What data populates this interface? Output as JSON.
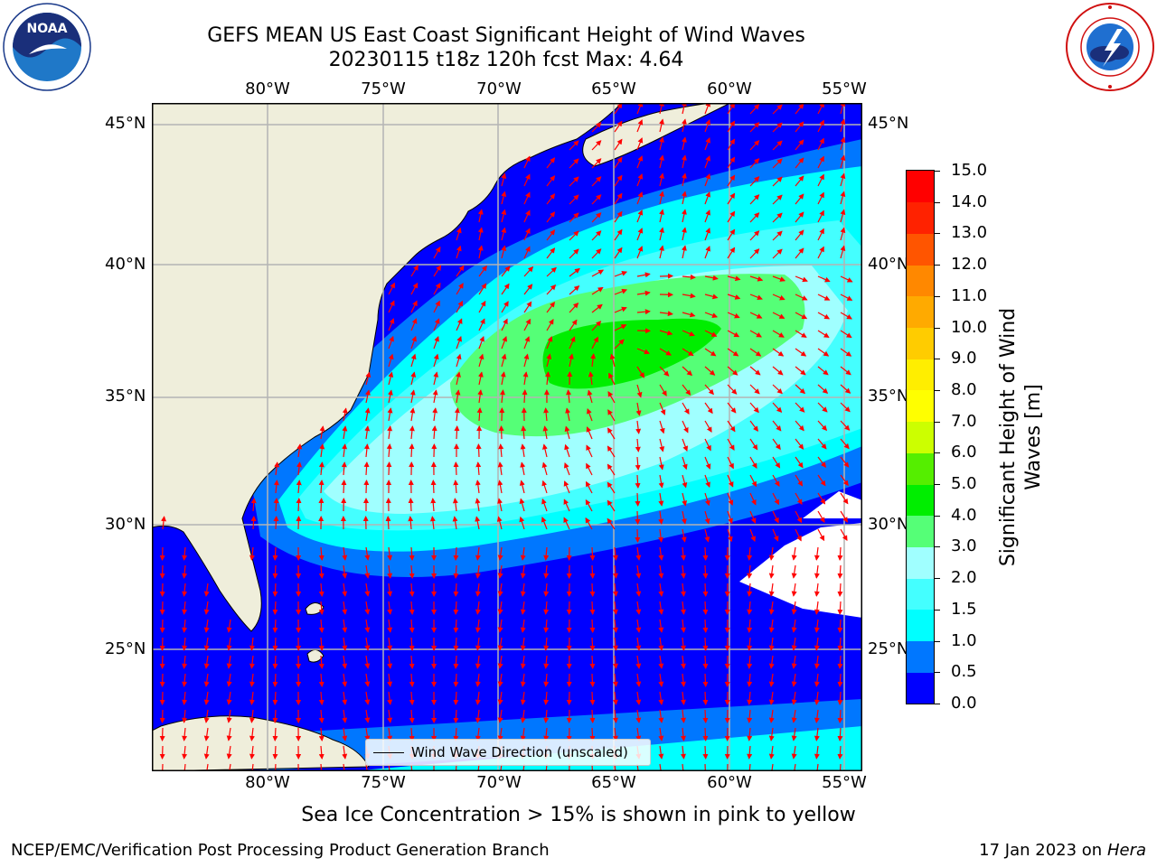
{
  "title": {
    "line1": "GEFS MEAN US East Coast Significant Height of Wind Waves",
    "line2": "20230115 t18z 120h fcst   Max: 4.64"
  },
  "lon_labels": [
    "80°W",
    "75°W",
    "70°W",
    "65°W",
    "60°W",
    "55°W"
  ],
  "lat_labels": [
    "45°N",
    "40°N",
    "35°N",
    "30°N",
    "25°N"
  ],
  "legend": {
    "text": "Wind Wave Direction (unscaled)"
  },
  "colorbar": {
    "label_line1": "Significant Height of Wind",
    "label_line2": "Waves [m]",
    "ticks": [
      "0.0",
      "0.5",
      "1.0",
      "1.5",
      "2.0",
      "3.0",
      "4.0",
      "5.0",
      "6.0",
      "7.0",
      "8.0",
      "9.0",
      "10.0",
      "11.0",
      "12.0",
      "13.0",
      "14.0",
      "15.0"
    ],
    "colors": [
      "#0000ff",
      "#0077ff",
      "#00ffff",
      "#44ffff",
      "#a0ffff",
      "#55ff77",
      "#00ee00",
      "#55ee00",
      "#ccff00",
      "#ffff00",
      "#ffee00",
      "#ffcc00",
      "#ffaa00",
      "#ff8800",
      "#ff5500",
      "#ff2200",
      "#ff0000"
    ]
  },
  "ice_note": "Sea Ice Concentration > 15% is shown in pink to yellow",
  "footer": {
    "left": "NCEP/EMC/Verification Post Processing Product Generation Branch",
    "right_date": "17 Jan 2023 on ",
    "right_host": "Hera"
  },
  "colors": {
    "land": "#efeedb",
    "grid": "#b4b4b4",
    "arrow": "#ff0000"
  }
}
